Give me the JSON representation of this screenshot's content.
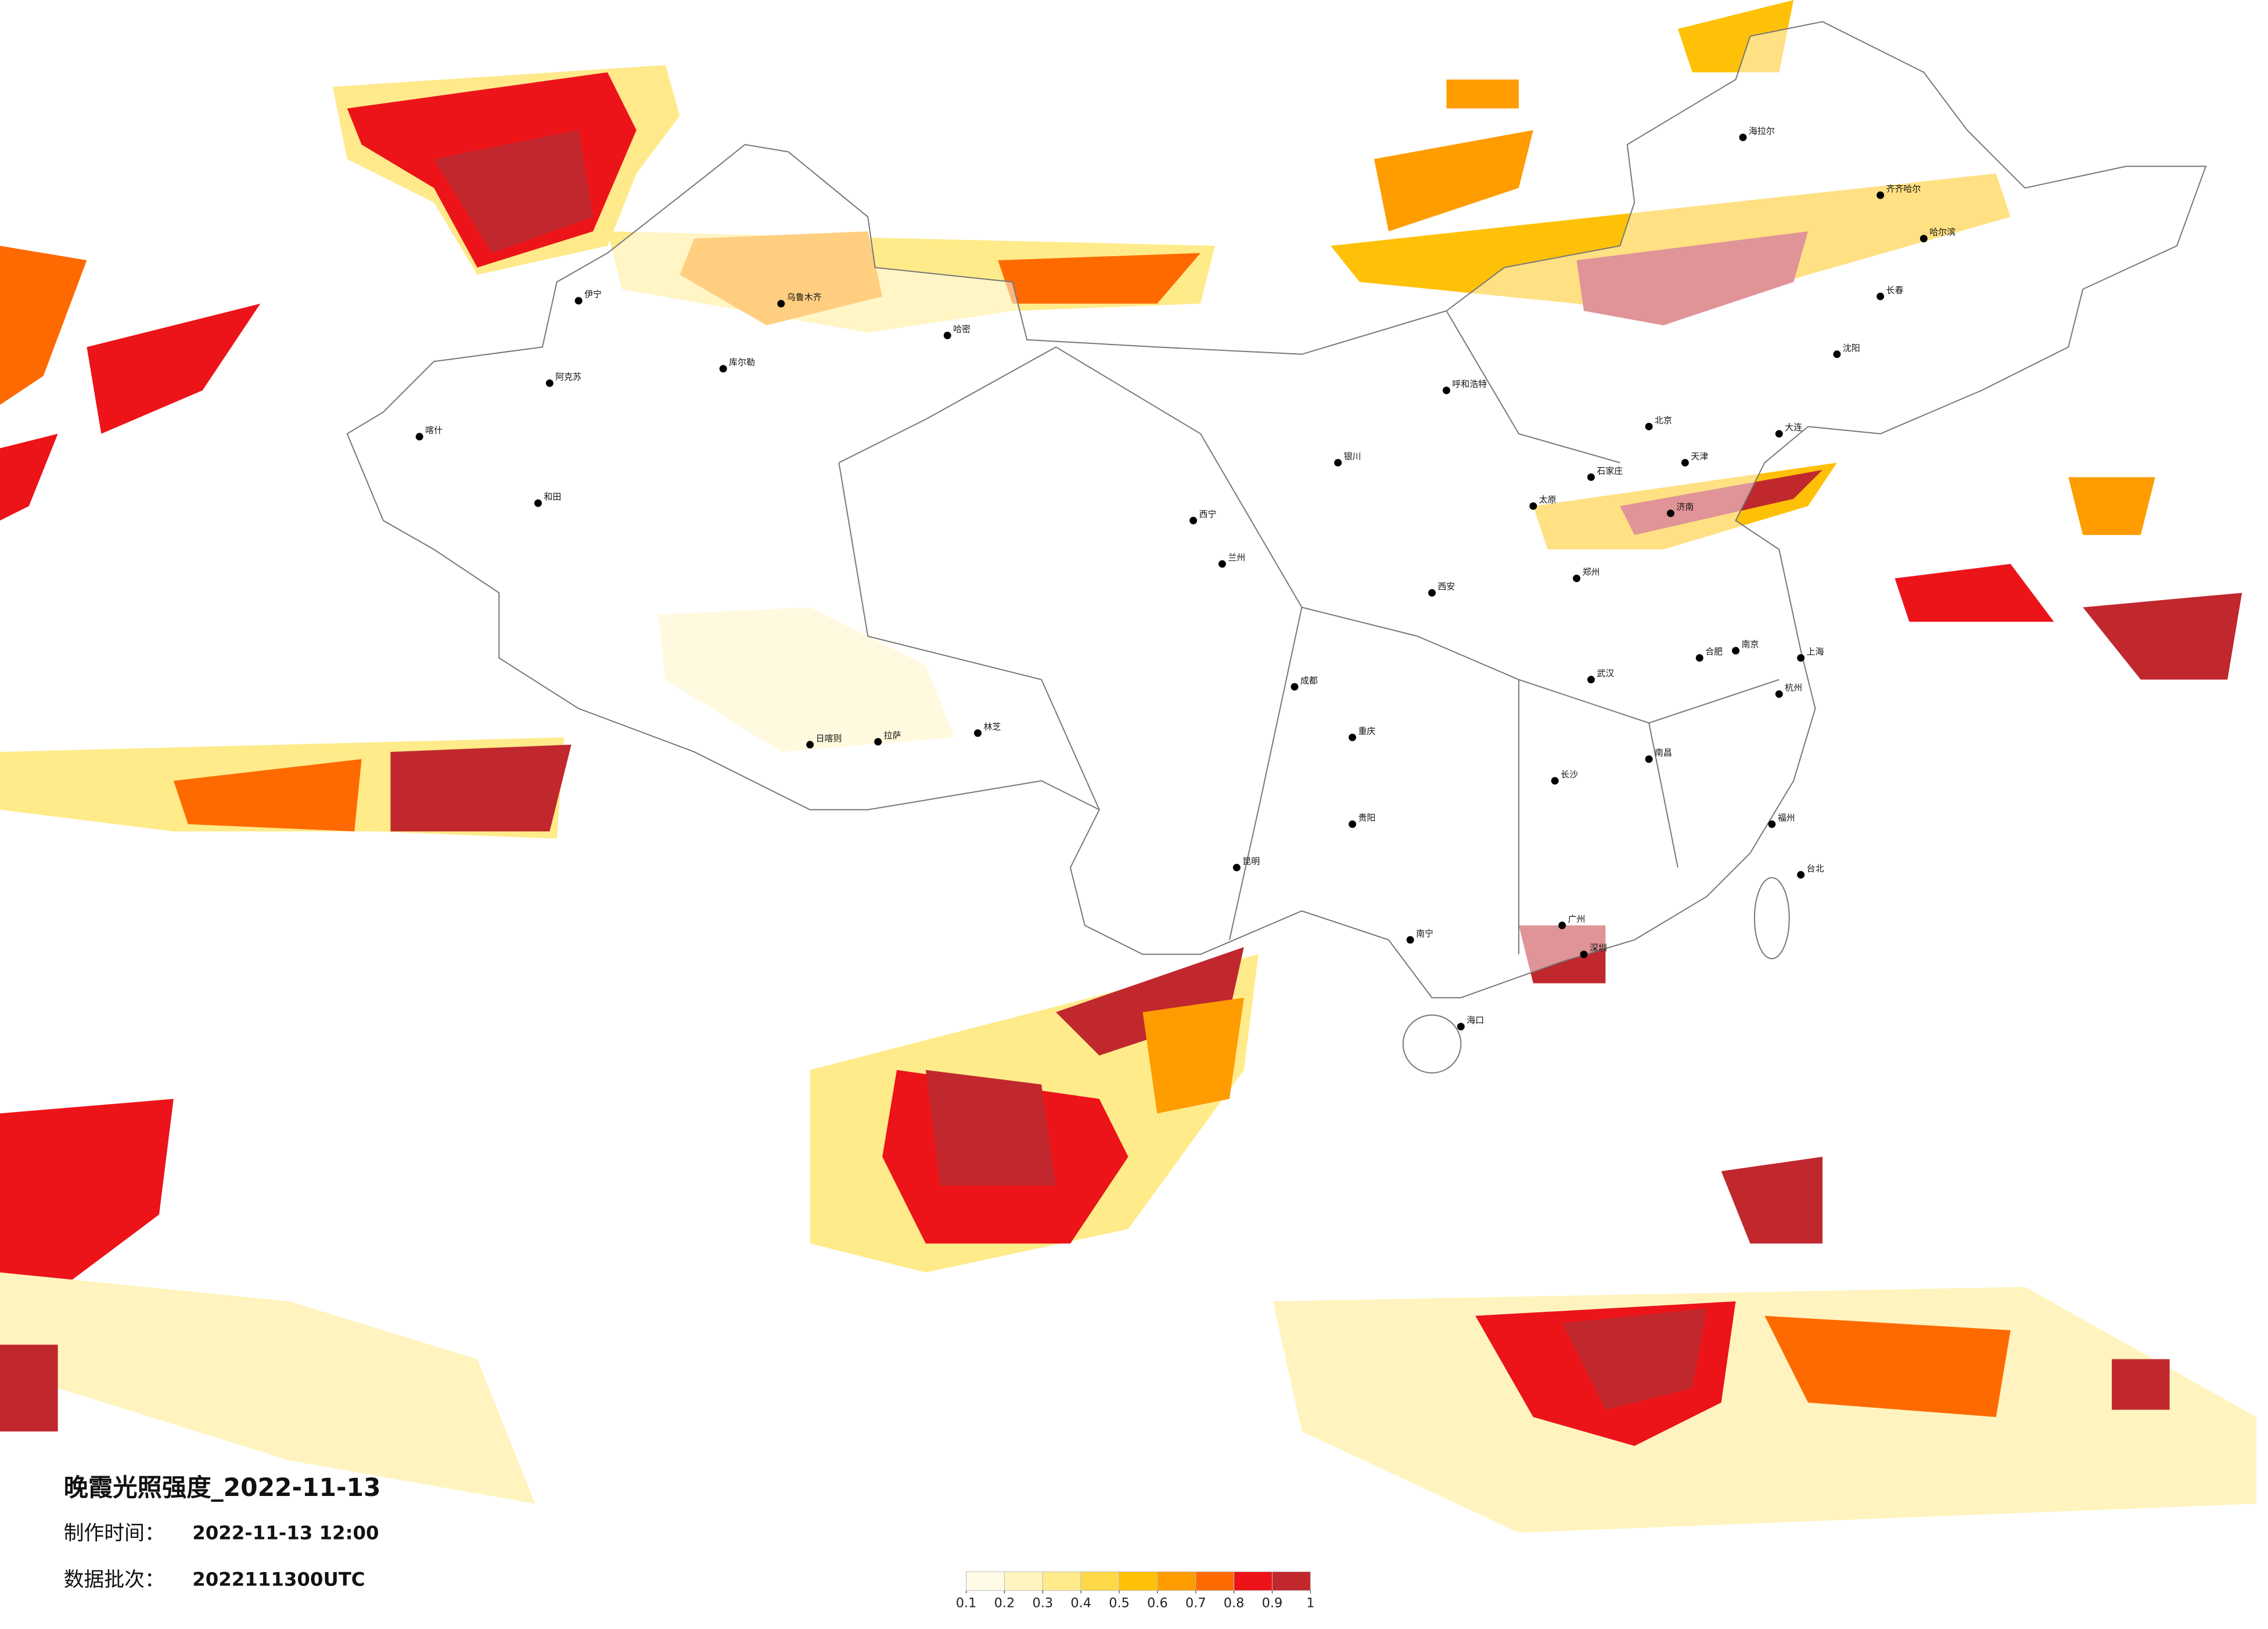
{
  "title": "晚霞光照强度_2022-11-13",
  "meta": {
    "made_label": "制作时间：",
    "made_value": "2022-11-13 12:00",
    "batch_label": "数据批次：",
    "batch_value": "2022111300UTC"
  },
  "legend": {
    "colors": [
      "#fffbe6",
      "#fff4bf",
      "#ffeb8a",
      "#ffd84a",
      "#ffc107",
      "#ff9c00",
      "#ff6a00",
      "#ec1419",
      "#c0282e"
    ],
    "ticks": [
      0.1,
      0.2,
      0.3,
      0.4,
      0.5,
      0.6,
      0.7,
      0.8,
      0.9,
      1
    ]
  },
  "cities": [
    "乌鲁木齐",
    "伊宁",
    "喀什",
    "和田",
    "阿克苏",
    "库尔勒",
    "哈密",
    "拉萨",
    "日喀则",
    "林芝",
    "西宁",
    "兰州",
    "银川",
    "呼和浩特",
    "北京",
    "天津",
    "石家庄",
    "太原",
    "西安",
    "郑州",
    "济南",
    "南京",
    "上海",
    "杭州",
    "合肥",
    "武汉",
    "长沙",
    "南昌",
    "福州",
    "台北",
    "广州",
    "深圳",
    "海口",
    "南宁",
    "贵阳",
    "昆明",
    "成都",
    "重庆",
    "沈阳",
    "长春",
    "哈尔滨",
    "齐齐哈尔",
    "海拉尔",
    "大连"
  ]
}
